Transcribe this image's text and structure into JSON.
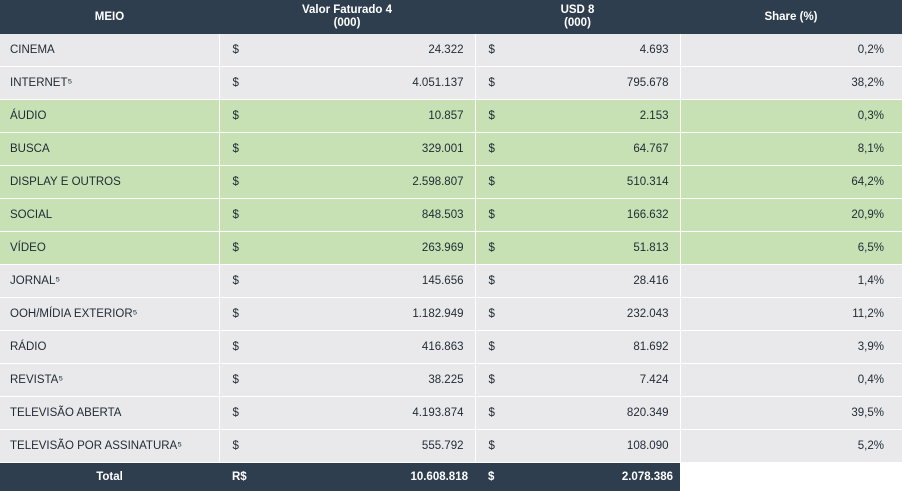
{
  "header": {
    "meio": "MEIO",
    "valor_line1": "Valor Faturado 4",
    "valor_line2": "(000)",
    "usd_line1": "USD 8",
    "usd_line2": "(000)",
    "share": "Share (%)"
  },
  "rows": [
    {
      "label": "CINEMA",
      "cur1": "$",
      "valor": "24.322",
      "cur2": "$",
      "usd": "4.693",
      "share": "0,2%",
      "highlight": false
    },
    {
      "label": "INTERNET⁵",
      "cur1": "$",
      "valor": "4.051.137",
      "cur2": "$",
      "usd": "795.678",
      "share": "38,2%",
      "highlight": false
    },
    {
      "label": "ÁUDIO",
      "cur1": "$",
      "valor": "10.857",
      "cur2": "$",
      "usd": "2.153",
      "share": "0,3%",
      "highlight": true
    },
    {
      "label": "BUSCA",
      "cur1": "$",
      "valor": "329.001",
      "cur2": "$",
      "usd": "64.767",
      "share": "8,1%",
      "highlight": true
    },
    {
      "label": "DISPLAY E OUTROS",
      "cur1": "$",
      "valor": "2.598.807",
      "cur2": "$",
      "usd": "510.314",
      "share": "64,2%",
      "highlight": true
    },
    {
      "label": "SOCIAL",
      "cur1": "$",
      "valor": "848.503",
      "cur2": "$",
      "usd": "166.632",
      "share": "20,9%",
      "highlight": true
    },
    {
      "label": "VÍDEO",
      "cur1": "$",
      "valor": "263.969",
      "cur2": "$",
      "usd": "51.813",
      "share": "6,5%",
      "highlight": true
    },
    {
      "label": "JORNAL⁵",
      "cur1": "$",
      "valor": "145.656",
      "cur2": "$",
      "usd": "28.416",
      "share": "1,4%",
      "highlight": false
    },
    {
      "label": "OOH/MÍDIA EXTERIOR⁵",
      "cur1": "$",
      "valor": "1.182.949",
      "cur2": "$",
      "usd": "232.043",
      "share": "11,2%",
      "highlight": false
    },
    {
      "label": "RÁDIO",
      "cur1": "$",
      "valor": "416.863",
      "cur2": "$",
      "usd": "81.692",
      "share": "3,9%",
      "highlight": false
    },
    {
      "label": "REVISTA⁵",
      "cur1": "$",
      "valor": "38.225",
      "cur2": "$",
      "usd": "7.424",
      "share": "0,4%",
      "highlight": false
    },
    {
      "label": "TELEVISÃO ABERTA",
      "cur1": "$",
      "valor": "4.193.874",
      "cur2": "$",
      "usd": "820.349",
      "share": "39,5%",
      "highlight": false
    },
    {
      "label": "TELEVISÃO POR ASSINATURA⁵",
      "cur1": "$",
      "valor": "555.792",
      "cur2": "$",
      "usd": "108.090",
      "share": "5,2%",
      "highlight": false
    }
  ],
  "total": {
    "label": "Total",
    "cur1": "R$",
    "valor": "10.608.818",
    "cur2": "$",
    "usd": "2.078.386"
  },
  "colors": {
    "header_bg": "#2e3e4e",
    "row_bg": "#e9e9ec",
    "highlight_bg": "#c7e1b5"
  }
}
